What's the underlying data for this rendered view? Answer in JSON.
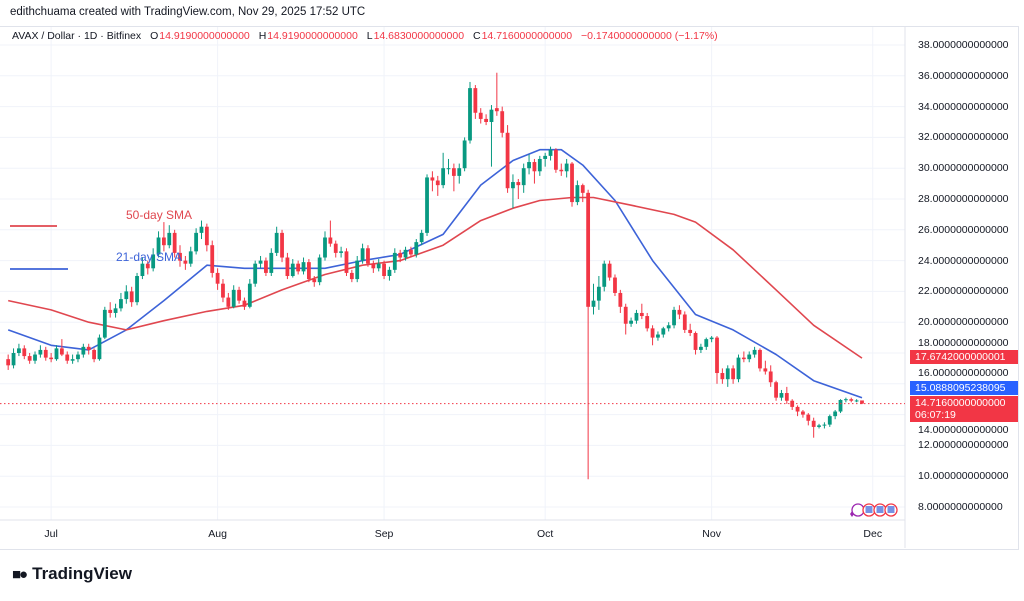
{
  "credit": "edithchuama created with TradingView.com, Nov 29, 2025 17:52 UTC",
  "legend": {
    "symbol": "AVAX / Dollar · 1D · Bitfinex",
    "o_key": "O",
    "o": "14.9190000000000",
    "h_key": "H",
    "h": "14.9190000000000",
    "l_key": "L",
    "l": "14.6830000000000",
    "c_key": "C",
    "c": "14.7160000000000",
    "change": "−0.1740000000000 (−1.17%)"
  },
  "badges": {
    "sma50": "17.6742000000001",
    "sma21": "15.0888095238095",
    "last": "14.7160000000000",
    "countdown": "06:07:19"
  },
  "logo": "TradingView",
  "colors": {
    "up": "#089981",
    "down": "#f23645",
    "sma21": "#3d63d8",
    "sma50": "#e0474f"
  },
  "chart_data": {
    "type": "candlestick",
    "last_date": "2025-11-29",
    "ylim": [
      8,
      38
    ],
    "y_ticks": [
      "38.0000000000000",
      "36.0000000000000",
      "34.0000000000000",
      "32.0000000000000",
      "30.0000000000000",
      "28.0000000000000",
      "26.0000000000000",
      "24.0000000000000",
      "22.0000000000000",
      "20.0000000000000",
      "18.0000000000000",
      "16.0000000000000",
      "14.0000000000000",
      "12.0000000000000",
      "10.0000000000000",
      "8.0000000000000"
    ],
    "y_tick_values": [
      38,
      36,
      34,
      32,
      30,
      28,
      26,
      24,
      22,
      20,
      18,
      16,
      14,
      12,
      10,
      8
    ],
    "x_ticks": [
      {
        "label": "Jul",
        "date": "2025-07-01"
      },
      {
        "label": "Aug",
        "date": "2025-08-01"
      },
      {
        "label": "Sep",
        "date": "2025-09-01"
      },
      {
        "label": "Oct",
        "date": "2025-10-01"
      },
      {
        "label": "Nov",
        "date": "2025-11-01"
      },
      {
        "label": "Dec",
        "date": "2025-12-01"
      }
    ],
    "grid": true,
    "annotations": {
      "sma50_label": "50-day SMA",
      "sma21_label": "21-day SMA"
    },
    "candles": [
      [
        17.6,
        17.9,
        16.9,
        17.2
      ],
      [
        17.2,
        18.3,
        17.0,
        18.0
      ],
      [
        18.0,
        18.6,
        17.8,
        18.3
      ],
      [
        18.3,
        18.5,
        17.6,
        17.8
      ],
      [
        17.8,
        18.0,
        17.3,
        17.5
      ],
      [
        17.5,
        18.1,
        17.3,
        17.9
      ],
      [
        17.9,
        18.5,
        17.7,
        18.2
      ],
      [
        18.2,
        18.4,
        17.5,
        17.7
      ],
      [
        17.7,
        18.0,
        17.4,
        17.6
      ],
      [
        17.6,
        18.5,
        17.5,
        18.3
      ],
      [
        18.3,
        18.9,
        17.8,
        17.9
      ],
      [
        17.9,
        18.1,
        17.3,
        17.5
      ],
      [
        17.5,
        17.9,
        17.3,
        17.6
      ],
      [
        17.6,
        18.1,
        17.4,
        17.9
      ],
      [
        17.9,
        18.6,
        17.7,
        18.4
      ],
      [
        18.4,
        18.6,
        17.9,
        18.2
      ],
      [
        18.2,
        18.3,
        17.4,
        17.6
      ],
      [
        17.6,
        19.2,
        17.5,
        19.0
      ],
      [
        19.0,
        21.0,
        18.9,
        20.8
      ],
      [
        20.8,
        21.3,
        20.3,
        20.6
      ],
      [
        20.6,
        21.2,
        20.3,
        20.9
      ],
      [
        20.9,
        21.9,
        20.7,
        21.5
      ],
      [
        21.5,
        22.4,
        21.2,
        22.0
      ],
      [
        22.0,
        22.3,
        21.0,
        21.3
      ],
      [
        21.3,
        23.2,
        21.1,
        23.0
      ],
      [
        23.0,
        24.2,
        22.8,
        23.8
      ],
      [
        23.8,
        24.0,
        23.1,
        23.5
      ],
      [
        23.5,
        24.8,
        23.3,
        24.4
      ],
      [
        24.4,
        25.9,
        24.2,
        25.5
      ],
      [
        25.5,
        26.5,
        24.6,
        25.0
      ],
      [
        25.0,
        26.3,
        24.8,
        25.8
      ],
      [
        25.8,
        26.0,
        24.2,
        24.5
      ],
      [
        24.5,
        25.0,
        23.6,
        24.0
      ],
      [
        24.0,
        24.3,
        23.4,
        23.8
      ],
      [
        23.8,
        24.9,
        23.6,
        24.6
      ],
      [
        24.6,
        26.1,
        24.4,
        25.8
      ],
      [
        25.8,
        26.6,
        25.4,
        26.2
      ],
      [
        26.2,
        26.4,
        24.6,
        25.0
      ],
      [
        25.0,
        25.3,
        22.9,
        23.2
      ],
      [
        23.2,
        23.5,
        22.1,
        22.5
      ],
      [
        22.5,
        22.8,
        21.3,
        21.6
      ],
      [
        21.6,
        21.9,
        20.8,
        21.0
      ],
      [
        21.0,
        22.4,
        20.9,
        22.1
      ],
      [
        22.1,
        22.3,
        21.2,
        21.4
      ],
      [
        21.4,
        21.6,
        20.8,
        21.0
      ],
      [
        21.0,
        22.8,
        20.9,
        22.5
      ],
      [
        22.5,
        24.0,
        22.3,
        23.8
      ],
      [
        23.8,
        24.3,
        23.5,
        24.0
      ],
      [
        24.0,
        24.2,
        23.0,
        23.2
      ],
      [
        23.2,
        24.8,
        23.0,
        24.5
      ],
      [
        24.5,
        26.2,
        24.3,
        25.8
      ],
      [
        25.8,
        26.0,
        23.9,
        24.2
      ],
      [
        24.2,
        24.5,
        22.8,
        23.0
      ],
      [
        23.0,
        24.1,
        22.9,
        23.8
      ],
      [
        23.8,
        24.0,
        23.1,
        23.3
      ],
      [
        23.3,
        24.2,
        23.1,
        23.9
      ],
      [
        23.9,
        24.1,
        22.6,
        22.8
      ],
      [
        22.8,
        23.0,
        22.3,
        22.6
      ],
      [
        22.6,
        24.4,
        22.4,
        24.2
      ],
      [
        24.2,
        25.9,
        24.0,
        25.5
      ],
      [
        25.5,
        26.6,
        24.9,
        25.1
      ],
      [
        25.1,
        25.3,
        24.2,
        24.5
      ],
      [
        24.5,
        24.9,
        24.2,
        24.6
      ],
      [
        24.6,
        24.8,
        23.0,
        23.2
      ],
      [
        23.2,
        23.4,
        22.6,
        22.8
      ],
      [
        22.8,
        24.3,
        22.6,
        24.0
      ],
      [
        24.0,
        25.1,
        23.8,
        24.8
      ],
      [
        24.8,
        25.0,
        23.6,
        23.8
      ],
      [
        23.8,
        24.0,
        23.2,
        23.5
      ],
      [
        23.5,
        24.1,
        23.3,
        23.8
      ],
      [
        23.8,
        24.0,
        22.8,
        23.0
      ],
      [
        23.0,
        23.6,
        22.7,
        23.4
      ],
      [
        23.4,
        24.8,
        23.2,
        24.5
      ],
      [
        24.5,
        24.7,
        23.9,
        24.2
      ],
      [
        24.2,
        24.9,
        24.0,
        24.7
      ],
      [
        24.7,
        24.9,
        24.2,
        24.4
      ],
      [
        24.4,
        25.4,
        24.2,
        25.2
      ],
      [
        25.2,
        26.0,
        25.0,
        25.8
      ],
      [
        25.8,
        29.6,
        25.6,
        29.4
      ],
      [
        29.4,
        29.8,
        28.5,
        29.2
      ],
      [
        29.2,
        29.5,
        28.2,
        28.9
      ],
      [
        28.9,
        31.0,
        28.7,
        30.0
      ],
      [
        30.0,
        30.6,
        29.6,
        30.0
      ],
      [
        30.0,
        30.3,
        28.5,
        29.5
      ],
      [
        29.5,
        30.3,
        29.0,
        30.0
      ],
      [
        30.0,
        32.0,
        29.8,
        31.8
      ],
      [
        31.8,
        35.6,
        31.6,
        35.2
      ],
      [
        35.2,
        35.4,
        33.2,
        33.6
      ],
      [
        33.6,
        33.9,
        32.9,
        33.2
      ],
      [
        33.2,
        33.5,
        32.8,
        33.0
      ],
      [
        33.0,
        34.1,
        30.1,
        33.8
      ],
      [
        33.9,
        36.2,
        33.4,
        33.7
      ],
      [
        33.7,
        34.0,
        32.0,
        32.3
      ],
      [
        32.3,
        32.8,
        28.4,
        28.7
      ],
      [
        28.7,
        29.6,
        27.4,
        29.1
      ],
      [
        29.1,
        29.3,
        28.0,
        28.9
      ],
      [
        28.9,
        30.3,
        28.4,
        30.0
      ],
      [
        30.0,
        30.9,
        29.6,
        30.4
      ],
      [
        30.4,
        30.6,
        29.0,
        29.8
      ],
      [
        29.8,
        30.8,
        29.5,
        30.6
      ],
      [
        30.6,
        31.0,
        30.1,
        30.8
      ],
      [
        30.8,
        31.4,
        30.5,
        31.2
      ],
      [
        31.2,
        31.3,
        29.7,
        29.9
      ],
      [
        29.9,
        30.3,
        29.5,
        29.8
      ],
      [
        29.8,
        30.6,
        29.4,
        30.3
      ],
      [
        30.3,
        30.4,
        27.5,
        27.8
      ],
      [
        27.8,
        29.2,
        27.6,
        28.9
      ],
      [
        28.9,
        29.0,
        27.8,
        28.4
      ],
      [
        28.4,
        28.6,
        9.8,
        21.0
      ],
      [
        21.0,
        22.5,
        20.5,
        21.4
      ],
      [
        21.4,
        23.0,
        20.8,
        22.3
      ],
      [
        22.3,
        24.0,
        22.0,
        23.8
      ],
      [
        23.8,
        24.0,
        22.7,
        22.9
      ],
      [
        22.9,
        23.1,
        21.7,
        21.9
      ],
      [
        21.9,
        22.1,
        20.6,
        21.0
      ],
      [
        21.0,
        21.2,
        19.2,
        19.9
      ],
      [
        19.9,
        20.3,
        19.7,
        20.1
      ],
      [
        20.1,
        20.8,
        19.9,
        20.6
      ],
      [
        20.6,
        21.2,
        20.2,
        20.4
      ],
      [
        20.4,
        20.6,
        19.4,
        19.6
      ],
      [
        19.6,
        19.8,
        18.5,
        19.0
      ],
      [
        19.0,
        19.4,
        18.8,
        19.2
      ],
      [
        19.2,
        19.7,
        19.0,
        19.6
      ],
      [
        19.6,
        20.0,
        19.4,
        19.8
      ],
      [
        19.8,
        21.0,
        19.6,
        20.8
      ],
      [
        20.8,
        21.1,
        20.2,
        20.5
      ],
      [
        20.5,
        20.7,
        19.3,
        19.5
      ],
      [
        19.5,
        19.9,
        19.1,
        19.3
      ],
      [
        19.3,
        19.4,
        17.9,
        18.2
      ],
      [
        18.2,
        18.6,
        18.0,
        18.4
      ],
      [
        18.4,
        19.0,
        18.2,
        18.9
      ],
      [
        18.9,
        19.1,
        18.7,
        19.0
      ],
      [
        19.0,
        19.1,
        16.0,
        16.7
      ],
      [
        16.7,
        17.0,
        16.0,
        16.3
      ],
      [
        16.3,
        17.2,
        15.8,
        17.0
      ],
      [
        17.0,
        17.2,
        16.0,
        16.3
      ],
      [
        16.3,
        17.9,
        16.1,
        17.7
      ],
      [
        17.7,
        18.1,
        17.4,
        17.6
      ],
      [
        17.6,
        18.1,
        17.4,
        17.9
      ],
      [
        17.9,
        18.4,
        17.7,
        18.2
      ],
      [
        18.2,
        18.3,
        16.8,
        17.0
      ],
      [
        17.0,
        17.5,
        16.6,
        16.8
      ],
      [
        16.8,
        17.2,
        15.8,
        16.1
      ],
      [
        16.1,
        16.2,
        14.9,
        15.1
      ],
      [
        15.1,
        15.6,
        14.9,
        15.4
      ],
      [
        15.4,
        15.8,
        14.7,
        14.9
      ],
      [
        14.9,
        15.0,
        14.3,
        14.5
      ],
      [
        14.5,
        14.6,
        13.9,
        14.2
      ],
      [
        14.2,
        14.3,
        13.8,
        14.0
      ],
      [
        14.0,
        14.1,
        13.3,
        13.6
      ],
      [
        13.6,
        13.8,
        12.5,
        13.2
      ],
      [
        13.2,
        13.4,
        13.1,
        13.3
      ],
      [
        13.3,
        13.5,
        13.1,
        13.35
      ],
      [
        13.35,
        14.0,
        13.2,
        13.9
      ],
      [
        13.9,
        14.3,
        13.7,
        14.2
      ],
      [
        14.2,
        15.0,
        14.1,
        14.95
      ],
      [
        14.95,
        15.1,
        14.8,
        15.0
      ],
      [
        15.0,
        15.1,
        14.8,
        14.9
      ],
      [
        14.9,
        15.0,
        14.8,
        14.919
      ],
      [
        14.919,
        14.919,
        14.683,
        14.716
      ]
    ],
    "series": [
      {
        "name": "21-day SMA",
        "points": [
          [
            "2025-06-23",
            19.5
          ],
          [
            "2025-07-01",
            18.5
          ],
          [
            "2025-07-08",
            18.2
          ],
          [
            "2025-07-15",
            19.5
          ],
          [
            "2025-07-22",
            21.4
          ],
          [
            "2025-07-30",
            23.7
          ],
          [
            "2025-08-06",
            23.5
          ],
          [
            "2025-08-13",
            23.5
          ],
          [
            "2025-08-21",
            23.5
          ],
          [
            "2025-08-28",
            24.0
          ],
          [
            "2025-09-04",
            24.4
          ],
          [
            "2025-09-12",
            25.7
          ],
          [
            "2025-09-19",
            28.9
          ],
          [
            "2025-09-25",
            30.5
          ],
          [
            "2025-09-30",
            31.2
          ],
          [
            "2025-10-04",
            31.2
          ],
          [
            "2025-10-08",
            30.2
          ],
          [
            "2025-10-14",
            27.9
          ],
          [
            "2025-10-21",
            24.0
          ],
          [
            "2025-10-29",
            20.5
          ],
          [
            "2025-11-05",
            19.5
          ],
          [
            "2025-11-13",
            17.9
          ],
          [
            "2025-11-20",
            16.2
          ],
          [
            "2025-11-29",
            15.09
          ]
        ]
      },
      {
        "name": "50-day SMA",
        "points": [
          [
            "2025-06-23",
            21.4
          ],
          [
            "2025-07-01",
            20.8
          ],
          [
            "2025-07-08",
            20.0
          ],
          [
            "2025-07-15",
            19.5
          ],
          [
            "2025-07-22",
            20.1
          ],
          [
            "2025-07-30",
            20.7
          ],
          [
            "2025-08-06",
            21.1
          ],
          [
            "2025-08-13",
            22.1
          ],
          [
            "2025-08-21",
            23.1
          ],
          [
            "2025-08-28",
            23.7
          ],
          [
            "2025-09-04",
            24.0
          ],
          [
            "2025-09-12",
            25.0
          ],
          [
            "2025-09-19",
            26.6
          ],
          [
            "2025-09-25",
            27.4
          ],
          [
            "2025-09-30",
            27.9
          ],
          [
            "2025-10-06",
            28.1
          ],
          [
            "2025-10-10",
            28.1
          ],
          [
            "2025-10-17",
            27.6
          ],
          [
            "2025-10-25",
            27.0
          ],
          [
            "2025-10-29",
            26.5
          ],
          [
            "2025-11-05",
            24.7
          ],
          [
            "2025-11-13",
            22.1
          ],
          [
            "2025-11-20",
            19.8
          ],
          [
            "2025-11-29",
            17.67
          ]
        ]
      }
    ]
  }
}
